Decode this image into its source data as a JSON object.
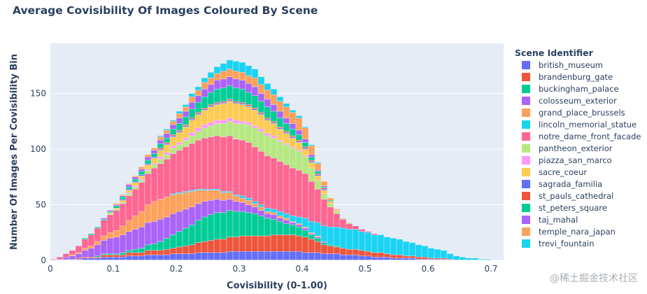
{
  "chart_data": {
    "type": "histogram",
    "title": "Average Covisibility Of Images Coloured By Scene",
    "xlabel": "Covisibility (0-1.00)",
    "ylabel": "Number Of Images Per Covisibility Bin",
    "xlim": [
      0,
      0.72
    ],
    "ylim": [
      0,
      195
    ],
    "xticks": [
      "0",
      "0.1",
      "0.2",
      "0.3",
      "0.4",
      "0.5",
      "0.6",
      "0.7"
    ],
    "yticks": [
      "0",
      "50",
      "100",
      "150"
    ],
    "grid": true,
    "bin_width": 0.01,
    "bins_start": [
      0.0,
      0.01,
      0.02,
      0.03,
      0.04,
      0.05,
      0.06,
      0.07,
      0.08,
      0.09,
      0.1,
      0.11,
      0.12,
      0.13,
      0.14,
      0.15,
      0.16,
      0.17,
      0.18,
      0.19,
      0.2,
      0.21,
      0.22,
      0.23,
      0.24,
      0.25,
      0.26,
      0.27,
      0.28,
      0.29,
      0.3,
      0.31,
      0.32,
      0.33,
      0.34,
      0.35,
      0.36,
      0.37,
      0.38,
      0.39,
      0.4,
      0.41,
      0.42,
      0.43,
      0.44,
      0.45,
      0.46,
      0.47,
      0.48,
      0.49,
      0.5,
      0.51,
      0.52,
      0.53,
      0.54,
      0.55,
      0.56,
      0.57,
      0.58,
      0.59,
      0.6,
      0.61,
      0.62,
      0.63,
      0.64,
      0.65,
      0.66,
      0.67,
      0.68,
      0.69,
      0.7,
      0.71
    ],
    "legend": {
      "title": "Scene Identifier",
      "placement": "right"
    },
    "series": [
      {
        "name": "british_museum",
        "color": "#636efa",
        "values": [
          0,
          0,
          1,
          1,
          1,
          2,
          2,
          2,
          3,
          3,
          3,
          3,
          4,
          4,
          4,
          5,
          5,
          5,
          5,
          6,
          6,
          6,
          6,
          7,
          7,
          7,
          7,
          7,
          8,
          8,
          8,
          8,
          8,
          8,
          8,
          8,
          8,
          8,
          8,
          8,
          7,
          7,
          7,
          6,
          6,
          6,
          5,
          5,
          5,
          4,
          4,
          3,
          3,
          3,
          2,
          2,
          2,
          2,
          1,
          1,
          1,
          1,
          1,
          0,
          0,
          0,
          0,
          0,
          0,
          0,
          0,
          0
        ]
      },
      {
        "name": "brandenburg_gate",
        "color": "#ef553b",
        "values": [
          0,
          0,
          0,
          0,
          1,
          1,
          1,
          1,
          2,
          2,
          2,
          2,
          3,
          3,
          3,
          4,
          4,
          4,
          5,
          5,
          6,
          7,
          8,
          9,
          10,
          11,
          12,
          12,
          13,
          13,
          14,
          14,
          14,
          14,
          14,
          15,
          15,
          15,
          15,
          14,
          14,
          12,
          10,
          8,
          7,
          6,
          6,
          5,
          5,
          5,
          4,
          4,
          4,
          3,
          3,
          3,
          2,
          2,
          2,
          2,
          1,
          1,
          1,
          1,
          0,
          0,
          0,
          0,
          0,
          0,
          0,
          0
        ]
      },
      {
        "name": "buckingham_palace",
        "color": "#00cc96",
        "values": [
          0,
          0,
          0,
          0,
          0,
          0,
          0,
          1,
          1,
          1,
          1,
          2,
          2,
          3,
          4,
          5,
          6,
          8,
          10,
          12,
          14,
          16,
          18,
          20,
          22,
          23,
          24,
          24,
          24,
          23,
          22,
          21,
          20,
          18,
          16,
          14,
          12,
          10,
          9,
          8,
          6,
          4,
          3,
          2,
          1,
          1,
          0,
          0,
          0,
          0,
          0,
          0,
          0,
          0,
          0,
          0,
          0,
          0,
          0,
          0,
          0,
          0,
          0,
          0,
          0,
          0,
          0,
          0,
          0,
          0,
          0,
          0
        ]
      },
      {
        "name": "colosseum_exterior",
        "color": "#ab63fa",
        "values": [
          0,
          1,
          2,
          3,
          4,
          6,
          8,
          10,
          12,
          14,
          15,
          16,
          17,
          18,
          19,
          20,
          20,
          20,
          19,
          19,
          18,
          17,
          16,
          15,
          14,
          13,
          12,
          11,
          10,
          9,
          8,
          7,
          6,
          5,
          4,
          4,
          3,
          3,
          2,
          2,
          2,
          1,
          1,
          1,
          0,
          0,
          0,
          0,
          0,
          0,
          0,
          0,
          0,
          0,
          0,
          0,
          0,
          0,
          0,
          0,
          0,
          0,
          0,
          0,
          0,
          0,
          0,
          0,
          0,
          0,
          0,
          0
        ]
      },
      {
        "name": "grand_place_brussels",
        "color": "#ffa15a",
        "values": [
          0,
          0,
          0,
          1,
          1,
          2,
          2,
          3,
          4,
          5,
          6,
          8,
          10,
          12,
          14,
          16,
          18,
          18,
          18,
          17,
          16,
          15,
          14,
          12,
          10,
          9,
          8,
          7,
          6,
          5,
          4,
          4,
          3,
          3,
          2,
          2,
          2,
          2,
          1,
          1,
          1,
          1,
          1,
          0,
          0,
          0,
          0,
          0,
          0,
          0,
          0,
          0,
          0,
          0,
          0,
          0,
          0,
          0,
          0,
          0,
          0,
          0,
          0,
          0,
          0,
          0,
          0,
          0,
          0,
          0,
          0,
          0
        ]
      },
      {
        "name": "lincoln_memorial_statue",
        "color": "#19d3f3",
        "values": [
          0,
          0,
          0,
          0,
          0,
          0,
          0,
          0,
          0,
          0,
          0,
          0,
          0,
          0,
          0,
          0,
          0,
          0,
          0,
          1,
          1,
          1,
          1,
          1,
          1,
          1,
          1,
          1,
          1,
          1,
          2,
          2,
          2,
          2,
          3,
          3,
          4,
          4,
          5,
          6,
          8,
          10,
          12,
          14,
          16,
          17,
          18,
          18,
          18,
          17,
          17,
          16,
          16,
          15,
          15,
          14,
          13,
          12,
          11,
          10,
          9,
          8,
          7,
          5,
          4,
          3,
          2,
          2,
          1,
          1,
          0,
          0
        ]
      },
      {
        "name": "notre_dame_front_facade",
        "color": "#ff6692",
        "values": [
          1,
          2,
          3,
          4,
          6,
          8,
          10,
          12,
          14,
          16,
          18,
          20,
          22,
          24,
          26,
          28,
          30,
          32,
          34,
          36,
          38,
          40,
          42,
          44,
          46,
          47,
          48,
          49,
          50,
          50,
          50,
          50,
          49,
          48,
          47,
          46,
          45,
          44,
          43,
          42,
          40,
          36,
          30,
          24,
          18,
          12,
          8,
          5,
          3,
          2,
          1,
          1,
          0,
          0,
          0,
          0,
          0,
          0,
          0,
          0,
          0,
          0,
          0,
          0,
          0,
          0,
          0,
          0,
          0,
          0,
          0,
          0
        ]
      },
      {
        "name": "pantheon_exterior",
        "color": "#b6e880",
        "values": [
          0,
          0,
          0,
          0,
          0,
          0,
          0,
          0,
          0,
          1,
          1,
          1,
          2,
          2,
          2,
          3,
          3,
          4,
          4,
          5,
          5,
          6,
          7,
          8,
          9,
          10,
          11,
          12,
          13,
          14,
          15,
          16,
          17,
          18,
          18,
          18,
          18,
          18,
          18,
          17,
          15,
          12,
          8,
          5,
          3,
          2,
          1,
          1,
          0,
          0,
          0,
          0,
          0,
          0,
          0,
          0,
          0,
          0,
          0,
          0,
          0,
          0,
          0,
          0,
          0,
          0,
          0,
          0,
          0,
          0,
          0,
          0
        ]
      },
      {
        "name": "piazza_san_marco",
        "color": "#ff97ff",
        "values": [
          0,
          0,
          0,
          0,
          0,
          0,
          0,
          0,
          0,
          0,
          0,
          0,
          1,
          1,
          1,
          1,
          1,
          2,
          2,
          2,
          2,
          2,
          3,
          3,
          3,
          3,
          3,
          3,
          3,
          3,
          2,
          2,
          2,
          2,
          2,
          2,
          1,
          1,
          1,
          1,
          1,
          0,
          0,
          0,
          0,
          0,
          0,
          0,
          0,
          0,
          0,
          0,
          0,
          0,
          0,
          0,
          0,
          0,
          0,
          0,
          0,
          0,
          0,
          0,
          0,
          0,
          0,
          0,
          0,
          0,
          0,
          0
        ]
      },
      {
        "name": "sacre_coeur",
        "color": "#fecb52",
        "values": [
          0,
          0,
          0,
          0,
          0,
          0,
          0,
          0,
          0,
          1,
          1,
          2,
          2,
          3,
          3,
          4,
          5,
          6,
          7,
          8,
          9,
          10,
          11,
          12,
          13,
          14,
          14,
          15,
          15,
          15,
          15,
          14,
          14,
          13,
          12,
          11,
          10,
          9,
          8,
          7,
          6,
          5,
          4,
          3,
          2,
          1,
          0,
          0,
          0,
          0,
          0,
          0,
          0,
          0,
          0,
          0,
          0,
          0,
          0,
          0,
          0,
          0,
          0,
          0,
          0,
          0,
          0,
          0,
          0,
          0,
          0,
          0
        ]
      },
      {
        "name": "sagrada_familia",
        "color": "#636efa",
        "values": [
          0,
          0,
          0,
          0,
          0,
          0,
          0,
          0,
          0,
          0,
          0,
          1,
          1,
          1,
          1,
          1,
          1,
          1,
          1,
          1,
          1,
          1,
          1,
          1,
          1,
          1,
          1,
          1,
          1,
          1,
          1,
          1,
          1,
          1,
          1,
          1,
          1,
          1,
          1,
          1,
          1,
          1,
          1,
          1,
          0,
          0,
          0,
          0,
          0,
          0,
          0,
          0,
          0,
          0,
          0,
          0,
          0,
          0,
          0,
          0,
          0,
          0,
          0,
          0,
          0,
          0,
          0,
          0,
          0,
          0,
          0,
          0
        ]
      },
      {
        "name": "st_pauls_cathedral",
        "color": "#ef553b",
        "values": [
          0,
          0,
          0,
          0,
          0,
          0,
          0,
          0,
          0,
          0,
          0,
          0,
          0,
          0,
          0,
          0,
          0,
          1,
          1,
          1,
          1,
          1,
          1,
          1,
          1,
          1,
          1,
          1,
          1,
          1,
          1,
          1,
          1,
          1,
          1,
          1,
          1,
          1,
          1,
          1,
          1,
          1,
          1,
          1,
          0,
          0,
          0,
          0,
          0,
          0,
          0,
          0,
          0,
          0,
          0,
          0,
          0,
          0,
          0,
          0,
          0,
          0,
          0,
          0,
          0,
          0,
          0,
          0,
          0,
          0,
          0,
          0
        ]
      },
      {
        "name": "st_peters_square",
        "color": "#00cc96",
        "values": [
          0,
          0,
          0,
          0,
          0,
          1,
          1,
          1,
          1,
          1,
          2,
          2,
          2,
          2,
          3,
          3,
          3,
          4,
          4,
          5,
          6,
          7,
          8,
          9,
          10,
          11,
          12,
          12,
          12,
          12,
          12,
          11,
          11,
          10,
          10,
          9,
          8,
          7,
          6,
          5,
          4,
          3,
          2,
          1,
          1,
          0,
          0,
          0,
          0,
          0,
          0,
          0,
          0,
          0,
          0,
          0,
          0,
          0,
          0,
          0,
          0,
          0,
          0,
          0,
          0,
          0,
          0,
          0,
          0,
          0,
          0,
          0
        ]
      },
      {
        "name": "taj_mahal",
        "color": "#ab63fa",
        "values": [
          0,
          0,
          0,
          0,
          0,
          0,
          0,
          0,
          1,
          1,
          1,
          1,
          2,
          2,
          2,
          3,
          3,
          3,
          4,
          4,
          5,
          5,
          6,
          6,
          7,
          7,
          8,
          8,
          8,
          8,
          8,
          8,
          8,
          7,
          7,
          6,
          6,
          5,
          5,
          4,
          3,
          2,
          1,
          1,
          0,
          0,
          0,
          0,
          0,
          0,
          0,
          0,
          0,
          0,
          0,
          0,
          0,
          0,
          0,
          0,
          0,
          0,
          0,
          0,
          0,
          0,
          0,
          0,
          0,
          0,
          0,
          0
        ]
      },
      {
        "name": "temple_nara_japan",
        "color": "#ffa15a",
        "values": [
          0,
          0,
          0,
          0,
          0,
          0,
          0,
          0,
          0,
          0,
          1,
          1,
          1,
          1,
          2,
          2,
          2,
          3,
          3,
          3,
          4,
          4,
          5,
          5,
          6,
          6,
          6,
          7,
          7,
          7,
          7,
          7,
          8,
          8,
          8,
          9,
          9,
          10,
          10,
          11,
          10,
          8,
          6,
          4,
          2,
          1,
          0,
          0,
          0,
          0,
          0,
          0,
          0,
          0,
          0,
          0,
          0,
          0,
          0,
          0,
          0,
          0,
          0,
          0,
          0,
          0,
          0,
          0,
          0,
          0,
          0,
          0
        ]
      },
      {
        "name": "trevi_fountain",
        "color": "#19d3f3",
        "values": [
          0,
          0,
          0,
          0,
          0,
          0,
          0,
          0,
          0,
          0,
          0,
          0,
          0,
          0,
          0,
          0,
          0,
          1,
          1,
          1,
          2,
          2,
          3,
          3,
          4,
          5,
          6,
          7,
          8,
          9,
          9,
          9,
          8,
          7,
          6,
          5,
          4,
          3,
          2,
          2,
          1,
          1,
          1,
          0,
          0,
          0,
          0,
          0,
          0,
          0,
          0,
          0,
          0,
          0,
          0,
          0,
          0,
          0,
          0,
          0,
          0,
          0,
          0,
          0,
          0,
          0,
          0,
          0,
          0,
          0,
          0,
          0
        ]
      }
    ]
  },
  "watermark": "@稀土掘金技术社区"
}
